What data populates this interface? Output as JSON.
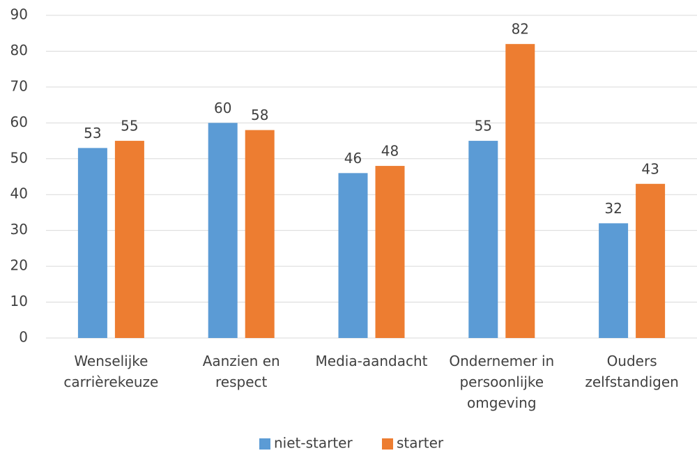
{
  "chart_data": {
    "type": "bar",
    "categories": [
      "Wenselijke carrièrekeuze",
      "Aanzien en respect",
      "Media-aandacht",
      "Ondernemer in persoonlijke omgeving",
      "Ouders zelfstandigen"
    ],
    "series": [
      {
        "name": "niet-starter",
        "color": "#5b9bd5",
        "values": [
          53,
          60,
          46,
          55,
          32
        ]
      },
      {
        "name": "starter",
        "color": "#ed7d31",
        "values": [
          55,
          58,
          48,
          82,
          43
        ]
      }
    ],
    "ylim": [
      0,
      90
    ],
    "yticks": [
      0,
      10,
      20,
      30,
      40,
      50,
      60,
      70,
      80,
      90
    ],
    "grid": true,
    "legend": "bottom"
  }
}
